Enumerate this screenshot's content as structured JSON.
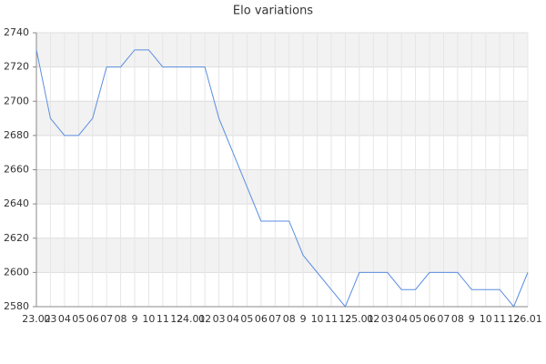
{
  "chart_data": {
    "type": "line",
    "title": "Elo variations",
    "categories": [
      "23.02",
      "03",
      "04",
      "05",
      "06",
      "07",
      "08",
      "9",
      "10",
      "11",
      "12",
      "24.01",
      "02",
      "03",
      "04",
      "05",
      "06",
      "07",
      "08",
      "9",
      "10",
      "11",
      "12",
      "25.01",
      "02",
      "03",
      "04",
      "05",
      "06",
      "07",
      "08",
      "9",
      "10",
      "11",
      "12",
      "26.01"
    ],
    "series": [
      {
        "name": "Elo",
        "color": "#5b8ee0",
        "values": [
          2730,
          2690,
          2680,
          2680,
          2690,
          2720,
          2720,
          2730,
          2730,
          2720,
          2720,
          2720,
          2720,
          2690,
          2670,
          2650,
          2630,
          2630,
          2630,
          2610,
          2600,
          2590,
          2580,
          2600,
          2600,
          2600,
          2590,
          2590,
          2600,
          2600,
          2600,
          2590,
          2590,
          2590,
          2580,
          2600
        ]
      }
    ],
    "ylim": [
      2580,
      2740
    ],
    "yticks": [
      2580,
      2600,
      2620,
      2640,
      2660,
      2680,
      2700,
      2720,
      2740
    ],
    "grid": true
  }
}
